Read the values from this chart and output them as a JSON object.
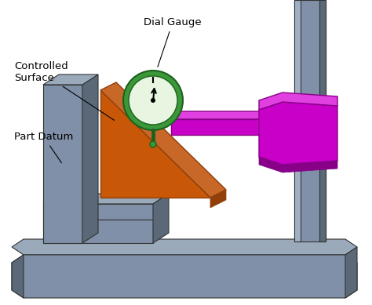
{
  "title": "",
  "background_color": "#ffffff",
  "labels": {
    "dial_gauge": "Dial Gauge",
    "controlled_surface": "Controlled\nSurface",
    "part_datum": "Part Datum"
  },
  "colors": {
    "base_plate": "#8090a8",
    "base_plate_dark": "#5a6878",
    "base_plate_light": "#a0b0c4",
    "base_plate_top": "#9aaabb",
    "orange_part": "#c85808",
    "orange_part_dark": "#904008",
    "orange_part_light": "#d87030",
    "orange_part_top": "#c86828",
    "gauge_green": "#3a9838",
    "gauge_green_dark": "#1e6020",
    "gauge_face": "#e8f5e0",
    "gauge_rim": "#289828",
    "magenta_arm": "#c800c8",
    "magenta_dark": "#880088",
    "magenta_light": "#e040e0",
    "magenta_top": "#d820d8",
    "gray_col": "#8090a8",
    "gray_col_dark": "#5a6878",
    "gray_col_light": "#a0b0c4",
    "white": "#ffffff",
    "black": "#000000",
    "text_color": "#000000"
  },
  "figsize": [
    4.74,
    3.89
  ],
  "dpi": 100
}
